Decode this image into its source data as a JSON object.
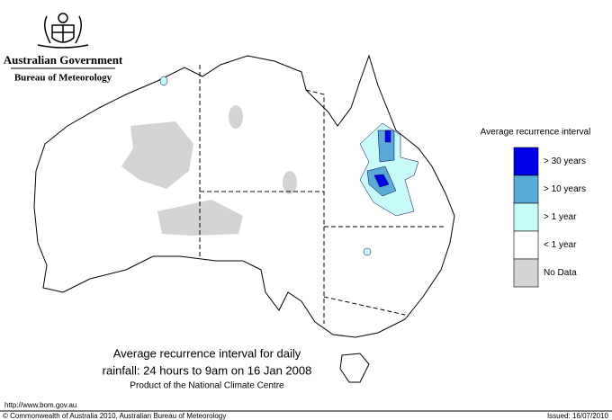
{
  "header": {
    "government": "Australian Government",
    "agency": "Bureau of Meteorology"
  },
  "legend": {
    "title": "Average recurrence interval",
    "items": [
      {
        "label": "> 30 years",
        "color": "#0000e6"
      },
      {
        "label": "> 10 years",
        "color": "#5aaad8"
      },
      {
        "label": "> 1 year",
        "color": "#c8fafa"
      },
      {
        "label": "< 1 year",
        "color": "#ffffff"
      },
      {
        "label": "No Data",
        "color": "#d4d4d4"
      }
    ]
  },
  "caption": {
    "line1": "Average recurrence interval for daily",
    "line2": "rainfall: 24 hours to 9am on 16 Jan 2008",
    "line3": "Product of the National Climate Centre"
  },
  "footer": {
    "url": "http://www.bom.gov.au",
    "copyright": "© Commonwealth of Australia 2010, Australian Bureau of Meteorology",
    "issued": "Issued: 16/07/2010"
  }
}
